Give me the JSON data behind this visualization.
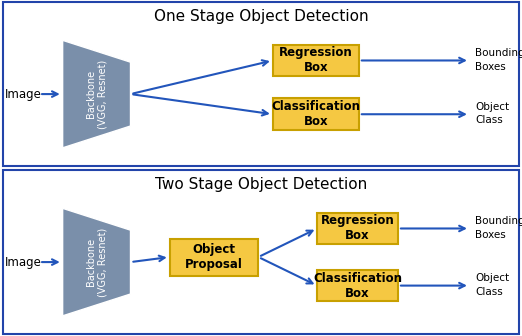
{
  "title_top": "One Stage Object Detection",
  "title_bottom": "Two Stage Object Detection",
  "bg_color": "#ffffff",
  "panel_border_color": "#2244aa",
  "backbone_color": "#7a8faa",
  "backbone_text": "Backbone\n(VGG, Resnet)",
  "yellow_color": "#f5c842",
  "yellow_border": "#c8a000",
  "arrow_color": "#2255bb",
  "text_color": "#000000",
  "title_fontsize": 11,
  "label_fontsize": 8.5,
  "small_fontsize": 7.5
}
